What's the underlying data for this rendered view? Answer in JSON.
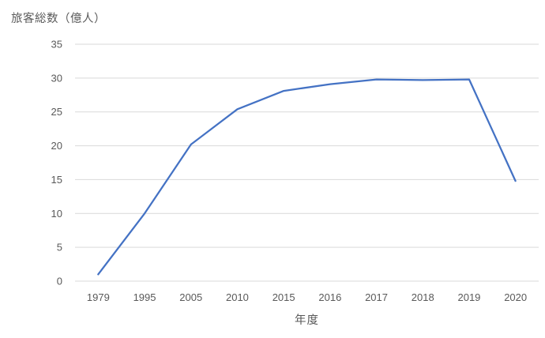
{
  "window": {
    "background": "#ffffff"
  },
  "chart_data": {
    "type": "line",
    "title": "旅客総数（億人）",
    "xlabel": "年度",
    "ylabel": "",
    "categories": [
      "1979",
      "1995",
      "2005",
      "2010",
      "2015",
      "2016",
      "2017",
      "2018",
      "2019",
      "2020"
    ],
    "series": [
      {
        "name": "旅客総数",
        "values": [
          1,
          10,
          20.2,
          25.4,
          28.1,
          29.1,
          29.8,
          29.7,
          29.8,
          14.8
        ],
        "color": "#4472C4"
      }
    ],
    "ylim": [
      0,
      35
    ],
    "ytick_step": 5,
    "ytick_labels": [
      "0",
      "5",
      "10",
      "15",
      "20",
      "25",
      "30",
      "35"
    ],
    "grid": "horizontal",
    "legend": "none",
    "colors": {
      "gridline": "#D9D9D9",
      "axis_label": "#595959",
      "background": "#ffffff"
    }
  }
}
